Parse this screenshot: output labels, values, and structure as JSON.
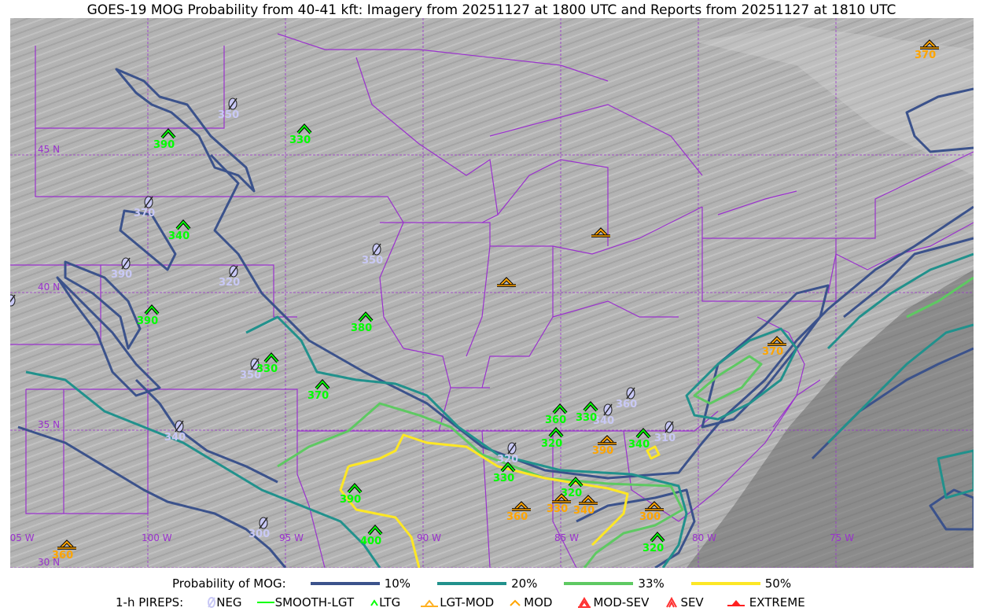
{
  "title": "GOES-19 MOG Probability from 40-41 kft: Imagery from 20251127 at 1800 UTC and Reports from 20251127 at 1810 UTC",
  "grid": {
    "lat_labels": [
      "45 N",
      "40 N",
      "35 N",
      "30 N"
    ],
    "lon_labels": [
      "105 W",
      "100 W",
      "95 W",
      "90 W",
      "85 W",
      "80 W",
      "75 W"
    ]
  },
  "colors": {
    "p10": "#3b528b",
    "p20": "#21918c",
    "p33": "#5ec962",
    "p50": "#fde725",
    "neg": "#c8c8f5",
    "ltg": "#00ff00",
    "mod": "#ffa500",
    "border": "#9a32cd"
  },
  "legend": {
    "probability_label": "Probability of MOG:",
    "levels": [
      {
        "label": "10%",
        "color": "#3b528b"
      },
      {
        "label": "20%",
        "color": "#21918c"
      },
      {
        "label": "33%",
        "color": "#5ec962"
      },
      {
        "label": "50%",
        "color": "#fde725"
      }
    ],
    "pireps_label": "1-h PIREPS:",
    "pireps": [
      {
        "label": "NEG",
        "icon": "neg-icon",
        "color": "#c8c8f5"
      },
      {
        "label": "SMOOTH-LGT",
        "icon": "smooth-lgt-icon",
        "color": "#00ff00"
      },
      {
        "label": "LTG",
        "icon": "ltg-icon",
        "color": "#00ff00"
      },
      {
        "label": "LGT-MOD",
        "icon": "lgt-mod-icon",
        "color": "#ffb020"
      },
      {
        "label": "MOD",
        "icon": "mod-icon",
        "color": "#ffa500"
      },
      {
        "label": "MOD-SEV",
        "icon": "mod-sev-icon",
        "color": "#ff3030"
      },
      {
        "label": "SEV",
        "icon": "sev-icon",
        "color": "#ff3030"
      },
      {
        "label": "EXTREME",
        "icon": "extreme-icon",
        "color": "#ff2020"
      }
    ]
  },
  "reports": [
    {
      "type": "NEG",
      "level": "350"
    },
    {
      "type": "NEG",
      "level": "370"
    },
    {
      "type": "NEG",
      "level": "390"
    },
    {
      "type": "NEG",
      "level": "320"
    },
    {
      "type": "NEG",
      "level": "350"
    },
    {
      "type": "NEG",
      "level": ""
    },
    {
      "type": "NEG",
      "level": "350"
    },
    {
      "type": "NEG",
      "level": "340"
    },
    {
      "type": "NEG",
      "level": "300"
    },
    {
      "type": "NEG",
      "level": "320"
    },
    {
      "type": "NEG",
      "level": "340"
    },
    {
      "type": "NEG",
      "level": "360"
    },
    {
      "type": "NEG",
      "level": "310"
    },
    {
      "type": "LTG",
      "level": "390"
    },
    {
      "type": "LTG",
      "level": "330"
    },
    {
      "type": "LTG",
      "level": "340"
    },
    {
      "type": "LTG",
      "level": "390"
    },
    {
      "type": "LTG",
      "level": "380"
    },
    {
      "type": "LTG",
      "level": "330"
    },
    {
      "type": "LTG",
      "level": "370"
    },
    {
      "type": "LTG",
      "level": "390"
    },
    {
      "type": "LTG",
      "level": "400"
    },
    {
      "type": "LTG",
      "level": "360"
    },
    {
      "type": "LTG",
      "level": "330"
    },
    {
      "type": "LTG",
      "level": "320"
    },
    {
      "type": "LTG",
      "level": "330"
    },
    {
      "type": "LTG",
      "level": "320"
    },
    {
      "type": "LTG",
      "level": "340"
    },
    {
      "type": "LTG",
      "level": "320"
    },
    {
      "type": "MOD",
      "level": "370"
    },
    {
      "type": "MOD",
      "level": ""
    },
    {
      "type": "MOD",
      "level": ""
    },
    {
      "type": "MOD",
      "level": "370"
    },
    {
      "type": "MOD",
      "level": "390"
    },
    {
      "type": "MOD",
      "level": "360"
    },
    {
      "type": "MOD",
      "level": "330"
    },
    {
      "type": "MOD",
      "level": "340"
    },
    {
      "type": "MOD",
      "level": "300"
    },
    {
      "type": "MOD",
      "level": "360"
    }
  ]
}
